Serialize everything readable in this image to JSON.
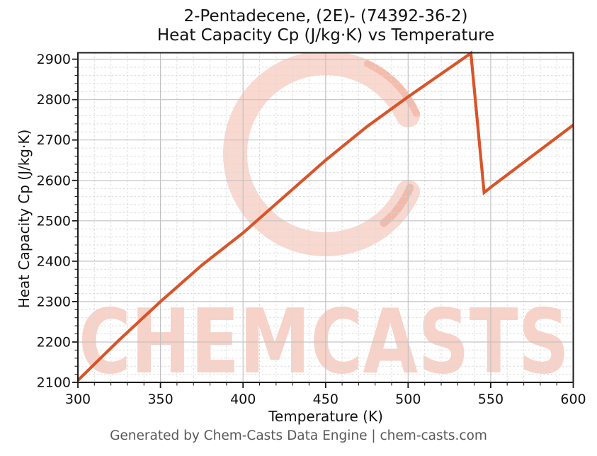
{
  "title": {
    "line1": "2-Pentadecene, (2E)- (74392-36-2)",
    "line2": "Heat Capacity Cp (J/kg·K) vs Temperature"
  },
  "footer": {
    "text": "Generated by Chem-Casts Data Engine | chem-casts.com"
  },
  "watermark": {
    "text": "CHEMCASTS",
    "logo": "brush-circle-logo"
  },
  "colors": {
    "line": "#d85429",
    "watermark": "#e25c38",
    "grid_major": "#c3c3c3",
    "grid_minor": "#d9d9d9",
    "spine": "#1c1c1c",
    "tick_label": "#111111",
    "footer_text": "#595959"
  },
  "chart_data": {
    "type": "line",
    "title": "2-Pentadecene, (2E)- (74392-36-2) — Heat Capacity Cp (J/kg·K) vs Temperature",
    "xlabel": "Temperature (K)",
    "ylabel": "Heat Capacity Cp (J/kg·K)",
    "xlim": [
      300,
      600
    ],
    "ylim": [
      2100,
      2916
    ],
    "x_ticks": [
      300,
      350,
      400,
      450,
      500,
      550,
      600
    ],
    "y_ticks": [
      2100,
      2200,
      2300,
      2400,
      2500,
      2600,
      2700,
      2800,
      2900
    ],
    "x_minor_step": 10,
    "y_minor_step": 20,
    "grid": true,
    "legend": null,
    "annotation": "discontinuity (peak then drop) near T = 538–546 K",
    "series": [
      {
        "name": "Heat Capacity Cp",
        "color": "#d85429",
        "x": [
          300,
          325,
          350,
          375,
          400,
          425,
          450,
          475,
          500,
          525,
          538,
          546,
          550,
          575,
          600
        ],
        "y": [
          2105,
          2205,
          2300,
          2390,
          2470,
          2560,
          2650,
          2733,
          2807,
          2878,
          2915,
          2570,
          2583,
          2660,
          2737
        ]
      }
    ]
  }
}
